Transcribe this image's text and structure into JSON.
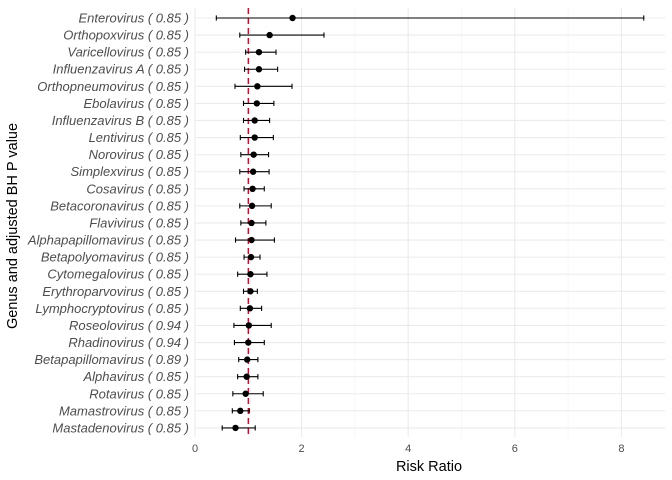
{
  "chart_data": {
    "type": "scatter",
    "subtype": "forest-plot",
    "xlabel": "Risk Ratio",
    "ylabel": "Genus and adjusted BH P value",
    "xlim": [
      0,
      8.65
    ],
    "x_ticks": [
      "0",
      "2",
      "4",
      "6",
      "8"
    ],
    "x_tick_values": [
      0,
      2,
      4,
      6,
      8
    ],
    "reference_line": 1,
    "reference_color": "#c8102e",
    "grid": true,
    "legend": "none",
    "categories": [
      "Enterovirus ( 0.85 )",
      "Orthopoxvirus ( 0.85 )",
      "Varicellovirus ( 0.85 )",
      "Influenzavirus A ( 0.85 )",
      "Orthopneumovirus ( 0.85 )",
      "Ebolavirus ( 0.85 )",
      "Influenzavirus B ( 0.85 )",
      "Lentivirus ( 0.85 )",
      "Norovirus ( 0.85 )",
      "Simplexvirus ( 0.85 )",
      "Cosavirus ( 0.85 )",
      "Betacoronavirus ( 0.85 )",
      "Flavivirus ( 0.85 )",
      "Alphapapillomavirus ( 0.85 )",
      "Betapolyomavirus ( 0.85 )",
      "Cytomegalovirus ( 0.85 )",
      "Erythroparvovirus ( 0.85 )",
      "Lymphocryptovirus ( 0.85 )",
      "Roseolovirus ( 0.94 )",
      "Rhadinovirus ( 0.94 )",
      "Betapapillomavirus ( 0.89 )",
      "Alphavirus ( 0.85 )",
      "Rotavirus ( 0.85 )",
      "Mamastrovirus ( 0.85 )",
      "Mastadenovirus ( 0.85 )"
    ],
    "estimates": [
      1.83,
      1.4,
      1.2,
      1.2,
      1.17,
      1.16,
      1.12,
      1.12,
      1.1,
      1.09,
      1.08,
      1.07,
      1.06,
      1.06,
      1.05,
      1.04,
      1.04,
      1.03,
      1.01,
      1.0,
      0.98,
      0.97,
      0.95,
      0.85,
      0.76
    ],
    "lower": [
      0.4,
      0.84,
      0.95,
      0.93,
      0.75,
      0.91,
      0.91,
      0.85,
      0.86,
      0.84,
      0.92,
      0.84,
      0.86,
      0.76,
      0.92,
      0.8,
      0.91,
      0.85,
      0.73,
      0.74,
      0.82,
      0.8,
      0.71,
      0.7,
      0.51
    ],
    "upper": [
      8.42,
      2.42,
      1.52,
      1.55,
      1.82,
      1.48,
      1.4,
      1.47,
      1.38,
      1.39,
      1.3,
      1.43,
      1.33,
      1.49,
      1.22,
      1.35,
      1.17,
      1.25,
      1.43,
      1.3,
      1.18,
      1.18,
      1.28,
      1.02,
      1.13
    ]
  }
}
